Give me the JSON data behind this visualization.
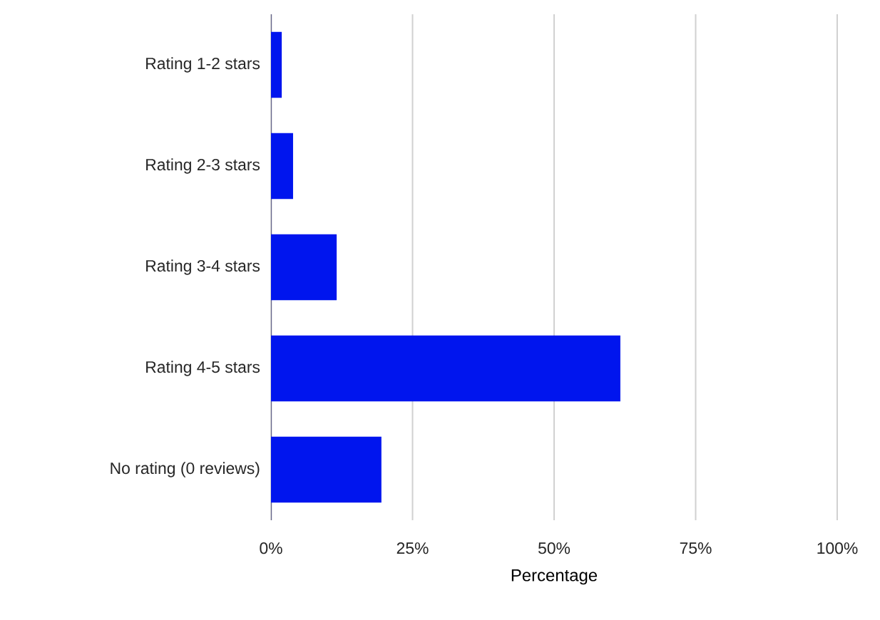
{
  "chart_data": {
    "type": "bar",
    "orientation": "horizontal",
    "xlabel": "Percentage",
    "categories": [
      "Rating 1-2 stars",
      "Rating 2-3 stars",
      "Rating 3-4 stars",
      "Rating 4-5 stars",
      "No rating (0 reviews)"
    ],
    "values": [
      1.9,
      3.9,
      11.6,
      61.7,
      19.5
    ],
    "color": "#0015ee",
    "xlim": [
      0,
      100
    ],
    "xticks": [
      {
        "value": 0,
        "label": "0%"
      },
      {
        "value": 25,
        "label": "25%"
      },
      {
        "value": 50,
        "label": "50%"
      },
      {
        "value": 75,
        "label": "75%"
      },
      {
        "value": 100,
        "label": "100%"
      }
    ],
    "grid": "x"
  }
}
